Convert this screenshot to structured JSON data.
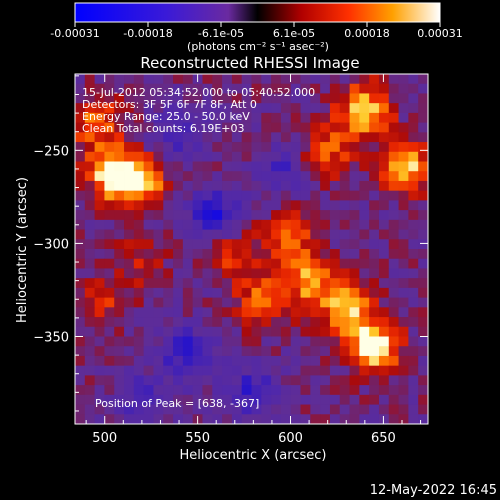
{
  "chart_data": {
    "type": "heatmap",
    "title": "Reconstructed RHESSI Image",
    "xlabel": "Heliocentric X (arcsec)",
    "ylabel": "Heliocentric Y (arcsec)",
    "xlim": [
      484,
      674
    ],
    "ylim": [
      -397,
      -209
    ],
    "xticks": [
      500,
      550,
      600,
      650
    ],
    "yticks": [
      -250,
      -300,
      -350
    ],
    "colorbar": {
      "ticks": [
        "-0.00031",
        "-0.00018",
        "-6.1e-05",
        "6.1e-05",
        "0.00018",
        "0.00031"
      ],
      "unit_label": "(photons cm⁻² s⁻¹ asec⁻²)",
      "range": [
        -0.00031,
        0.00031
      ]
    },
    "annotations": [
      "15-Jul-2012 05:34:52.000 to 05:40:52.000",
      "Detectors: 3F 5F 6F 7F 8F, Att 0",
      "Energy Range: 25.0 - 50.0 keV",
      "Clean     Total counts: 6.19E+03",
      "Position of Peak = [638, -367]"
    ],
    "peak": {
      "x": 638,
      "y": -367
    },
    "bright_regions": [
      {
        "x": 505,
        "y": -262,
        "intensity": 0.95
      },
      {
        "x": 520,
        "y": -268,
        "intensity": 0.7
      },
      {
        "x": 495,
        "y": -235,
        "intensity": 0.6
      },
      {
        "x": 640,
        "y": -228,
        "intensity": 0.85
      },
      {
        "x": 662,
        "y": -258,
        "intensity": 0.8
      },
      {
        "x": 620,
        "y": -250,
        "intensity": 0.55
      },
      {
        "x": 645,
        "y": -355,
        "intensity": 1.0
      },
      {
        "x": 630,
        "y": -335,
        "intensity": 0.8
      },
      {
        "x": 610,
        "y": -320,
        "intensity": 0.65
      },
      {
        "x": 585,
        "y": -330,
        "intensity": 0.6
      },
      {
        "x": 600,
        "y": -295,
        "intensity": 0.55
      },
      {
        "x": 570,
        "y": -305,
        "intensity": 0.45
      },
      {
        "x": 500,
        "y": -330,
        "intensity": 0.35
      },
      {
        "x": 520,
        "y": -310,
        "intensity": 0.3
      }
    ],
    "dark_regions": [
      {
        "x": 560,
        "y": -285,
        "intensity": -0.7
      },
      {
        "x": 540,
        "y": -240,
        "intensity": -0.5
      },
      {
        "x": 545,
        "y": -360,
        "intensity": -0.65
      },
      {
        "x": 580,
        "y": -380,
        "intensity": -0.55
      },
      {
        "x": 520,
        "y": -385,
        "intensity": -0.45
      },
      {
        "x": 595,
        "y": -260,
        "intensity": -0.4
      }
    ]
  },
  "footer": {
    "timestamp": "12-May-2022 16:45"
  }
}
